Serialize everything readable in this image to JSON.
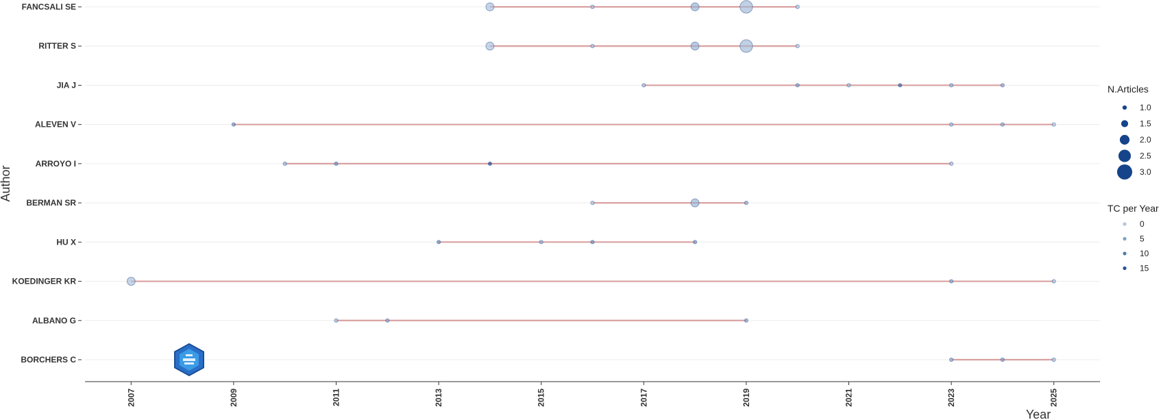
{
  "chart_data": {
    "type": "scatter",
    "xlabel": "Year",
    "ylabel": "Author",
    "x_ticks": [
      2007,
      2009,
      2011,
      2013,
      2015,
      2017,
      2019,
      2021,
      2023,
      2025
    ],
    "xlim": [
      2006.1,
      2025.9
    ],
    "grid": "horizontal",
    "legend_position": "right",
    "colors": {
      "line": "#d9a0a0",
      "point": "#15448a",
      "grid": "#ececec",
      "axis": "#333333"
    },
    "authors": [
      {
        "name": "FANCSALI SE",
        "points": [
          {
            "year": 2014,
            "n": 2,
            "tc": 1
          },
          {
            "year": 2016,
            "n": 1,
            "tc": 1
          },
          {
            "year": 2018,
            "n": 2,
            "tc": 3
          },
          {
            "year": 2019,
            "n": 3,
            "tc": 2
          },
          {
            "year": 2020,
            "n": 1,
            "tc": 0
          }
        ]
      },
      {
        "name": "RITTER S",
        "points": [
          {
            "year": 2014,
            "n": 2,
            "tc": 1
          },
          {
            "year": 2016,
            "n": 1,
            "tc": 1
          },
          {
            "year": 2018,
            "n": 2,
            "tc": 3
          },
          {
            "year": 2019,
            "n": 3,
            "tc": 2
          },
          {
            "year": 2020,
            "n": 1,
            "tc": 0
          }
        ]
      },
      {
        "name": "JIA J",
        "points": [
          {
            "year": 2017,
            "n": 1,
            "tc": 2
          },
          {
            "year": 2020,
            "n": 1,
            "tc": 6
          },
          {
            "year": 2021,
            "n": 1,
            "tc": 2
          },
          {
            "year": 2022,
            "n": 1,
            "tc": 14
          },
          {
            "year": 2023,
            "n": 1,
            "tc": 3
          },
          {
            "year": 2024,
            "n": 1,
            "tc": 5
          }
        ]
      },
      {
        "name": "ALEVEN V",
        "points": [
          {
            "year": 2009,
            "n": 1,
            "tc": 8
          },
          {
            "year": 2023,
            "n": 1,
            "tc": 2
          },
          {
            "year": 2024,
            "n": 1,
            "tc": 4
          },
          {
            "year": 2025,
            "n": 1,
            "tc": 0
          }
        ]
      },
      {
        "name": "ARROYO I",
        "points": [
          {
            "year": 2010,
            "n": 1,
            "tc": 3
          },
          {
            "year": 2011,
            "n": 1,
            "tc": 8
          },
          {
            "year": 2014,
            "n": 1,
            "tc": 17
          },
          {
            "year": 2023,
            "n": 1,
            "tc": 1
          }
        ]
      },
      {
        "name": "BERMAN SR",
        "points": [
          {
            "year": 2016,
            "n": 1,
            "tc": 1
          },
          {
            "year": 2018,
            "n": 2,
            "tc": 3
          },
          {
            "year": 2019,
            "n": 1,
            "tc": 5
          }
        ]
      },
      {
        "name": "HU X",
        "points": [
          {
            "year": 2013,
            "n": 1,
            "tc": 9
          },
          {
            "year": 2015,
            "n": 1,
            "tc": 4
          },
          {
            "year": 2016,
            "n": 1,
            "tc": 8
          },
          {
            "year": 2018,
            "n": 1,
            "tc": 8
          }
        ]
      },
      {
        "name": "KOEDINGER KR",
        "points": [
          {
            "year": 2007,
            "n": 2,
            "tc": 1
          },
          {
            "year": 2023,
            "n": 1,
            "tc": 5
          },
          {
            "year": 2025,
            "n": 1,
            "tc": 1
          }
        ]
      },
      {
        "name": "ALBANO G",
        "points": [
          {
            "year": 2011,
            "n": 1,
            "tc": 2
          },
          {
            "year": 2012,
            "n": 1,
            "tc": 5
          },
          {
            "year": 2019,
            "n": 1,
            "tc": 6
          }
        ]
      },
      {
        "name": "BORCHERS C",
        "points": [
          {
            "year": 2023,
            "n": 1,
            "tc": 5
          },
          {
            "year": 2024,
            "n": 1,
            "tc": 6
          },
          {
            "year": 2025,
            "n": 1,
            "tc": 1
          }
        ]
      }
    ],
    "legend": {
      "size_title": "N.Articles",
      "size_items": [
        {
          "label": "1.0",
          "value": 1
        },
        {
          "label": "1.5",
          "value": 1.5
        },
        {
          "label": "2.0",
          "value": 2
        },
        {
          "label": "2.5",
          "value": 2.5
        },
        {
          "label": "3.0",
          "value": 3
        }
      ],
      "color_title": "TC per Year",
      "color_items": [
        {
          "label": "0",
          "value": 0
        },
        {
          "label": "5",
          "value": 5
        },
        {
          "label": "10",
          "value": 10
        },
        {
          "label": "15",
          "value": 15
        }
      ]
    },
    "logo": "bibliometrix-logo"
  }
}
